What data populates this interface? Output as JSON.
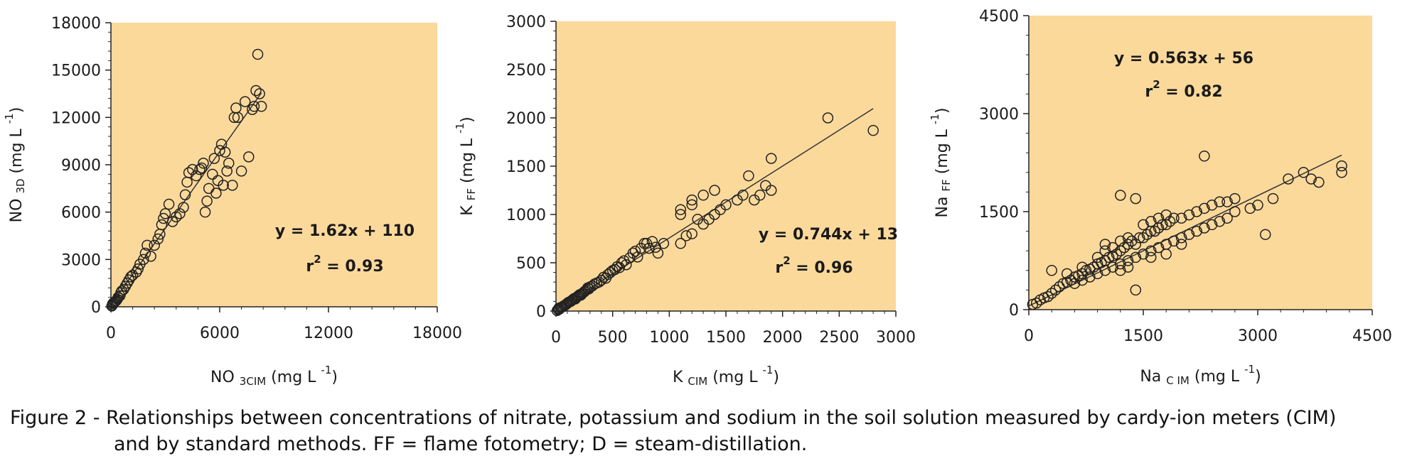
{
  "panels": [
    {
      "type": "scatter",
      "ylabel": {
        "base": "NO",
        "sub": "3D",
        "unit": "(mg L",
        "exp": "-1",
        "close": ")"
      },
      "xlabel": {
        "base": "NO",
        "sub": "3CIM",
        "unit": "(mg L",
        "exp": "-1",
        "close": ")"
      },
      "equation": "y = 1.62x + 110",
      "r2_value": "= 0.93",
      "r2_label": "r",
      "r2_exp": "2",
      "xlim": [
        0,
        18000
      ],
      "ylim": [
        0,
        18000
      ],
      "xticks": [
        0,
        6000,
        12000,
        18000
      ],
      "yticks": [
        0,
        3000,
        6000,
        9000,
        12000,
        15000,
        18000
      ],
      "xtick_labels": [
        "0",
        "6000",
        "12000",
        "18000"
      ],
      "ytick_labels": [
        "0",
        "3000",
        "6000",
        "9000",
        "12000",
        "15000",
        "18000"
      ],
      "fit": {
        "slope": 1.62,
        "intercept": 110,
        "x_range": [
          0,
          8300
        ]
      },
      "points": [
        [
          50,
          50
        ],
        [
          80,
          120
        ],
        [
          100,
          200
        ],
        [
          150,
          250
        ],
        [
          200,
          300
        ],
        [
          250,
          350
        ],
        [
          300,
          400
        ],
        [
          350,
          480
        ],
        [
          400,
          600
        ],
        [
          500,
          700
        ],
        [
          550,
          900
        ],
        [
          600,
          1000
        ],
        [
          700,
          1100
        ],
        [
          800,
          1300
        ],
        [
          900,
          1500
        ],
        [
          1000,
          1700
        ],
        [
          1100,
          1900
        ],
        [
          1200,
          2000
        ],
        [
          1400,
          2200
        ],
        [
          1500,
          2400
        ],
        [
          1600,
          2700
        ],
        [
          1800,
          3000
        ],
        [
          1900,
          3400
        ],
        [
          2000,
          3900
        ],
        [
          2200,
          3200
        ],
        [
          2400,
          3900
        ],
        [
          2600,
          4300
        ],
        [
          2700,
          4600
        ],
        [
          2800,
          5200
        ],
        [
          2900,
          5600
        ],
        [
          3000,
          5900
        ],
        [
          3200,
          6500
        ],
        [
          3400,
          5400
        ],
        [
          3600,
          5700
        ],
        [
          3800,
          5900
        ],
        [
          4000,
          6300
        ],
        [
          4100,
          7100
        ],
        [
          4200,
          7900
        ],
        [
          4300,
          8500
        ],
        [
          4500,
          8700
        ],
        [
          4700,
          8300
        ],
        [
          4900,
          8700
        ],
        [
          5000,
          8800
        ],
        [
          5100,
          9100
        ],
        [
          5200,
          6000
        ],
        [
          5300,
          6700
        ],
        [
          5400,
          7500
        ],
        [
          5600,
          8400
        ],
        [
          5700,
          9400
        ],
        [
          5800,
          7200
        ],
        [
          5900,
          8000
        ],
        [
          6000,
          9900
        ],
        [
          6100,
          10300
        ],
        [
          6200,
          7700
        ],
        [
          6300,
          9800
        ],
        [
          6400,
          8600
        ],
        [
          6500,
          9100
        ],
        [
          6700,
          7700
        ],
        [
          6800,
          12000
        ],
        [
          6900,
          12600
        ],
        [
          7000,
          12000
        ],
        [
          7200,
          8600
        ],
        [
          7400,
          13000
        ],
        [
          7600,
          9500
        ],
        [
          7800,
          12500
        ],
        [
          7900,
          12700
        ],
        [
          8000,
          13700
        ],
        [
          8100,
          16000
        ],
        [
          8200,
          13500
        ],
        [
          8300,
          12700
        ]
      ]
    },
    {
      "type": "scatter",
      "ylabel": {
        "base": "K",
        "sub": "FF",
        "unit": "(mg L",
        "exp": "-1",
        "close": ")"
      },
      "xlabel": {
        "base": "K",
        "sub": "CIM",
        "unit": "(mg L",
        "exp": "-1",
        "close": ")"
      },
      "equation": "y = 0.744x + 13",
      "r2_value": "= 0.96",
      "r2_label": "r",
      "r2_exp": "2",
      "xlim": [
        0,
        3000
      ],
      "ylim": [
        0,
        3000
      ],
      "xticks": [
        0,
        500,
        1000,
        1500,
        2000,
        2500,
        3000
      ],
      "yticks": [
        0,
        500,
        1000,
        1500,
        2000,
        2500,
        3000
      ],
      "xtick_labels": [
        "0",
        "500",
        "1000",
        "1500",
        "2000",
        "2500",
        "3000"
      ],
      "ytick_labels": [
        "0",
        "500",
        "1000",
        "1500",
        "2000",
        "2500",
        "3000"
      ],
      "fit": {
        "slope": 0.744,
        "intercept": 13,
        "x_range": [
          0,
          2800
        ]
      },
      "points": [
        [
          10,
          5
        ],
        [
          20,
          15
        ],
        [
          25,
          30
        ],
        [
          30,
          20
        ],
        [
          40,
          35
        ],
        [
          50,
          40
        ],
        [
          60,
          45
        ],
        [
          70,
          55
        ],
        [
          80,
          60
        ],
        [
          90,
          70
        ],
        [
          100,
          80
        ],
        [
          110,
          90
        ],
        [
          120,
          95
        ],
        [
          130,
          100
        ],
        [
          140,
          110
        ],
        [
          150,
          120
        ],
        [
          160,
          130
        ],
        [
          170,
          125
        ],
        [
          180,
          140
        ],
        [
          190,
          150
        ],
        [
          200,
          160
        ],
        [
          210,
          170
        ],
        [
          220,
          165
        ],
        [
          230,
          180
        ],
        [
          240,
          190
        ],
        [
          250,
          200
        ],
        [
          260,
          210
        ],
        [
          270,
          220
        ],
        [
          280,
          240
        ],
        [
          290,
          230
        ],
        [
          300,
          250
        ],
        [
          320,
          260
        ],
        [
          340,
          280
        ],
        [
          360,
          290
        ],
        [
          380,
          300
        ],
        [
          400,
          320
        ],
        [
          420,
          350
        ],
        [
          440,
          340
        ],
        [
          460,
          380
        ],
        [
          480,
          400
        ],
        [
          500,
          420
        ],
        [
          520,
          430
        ],
        [
          540,
          460
        ],
        [
          560,
          450
        ],
        [
          580,
          500
        ],
        [
          600,
          520
        ],
        [
          620,
          480
        ],
        [
          650,
          550
        ],
        [
          680,
          600
        ],
        [
          700,
          620
        ],
        [
          720,
          560
        ],
        [
          750,
          650
        ],
        [
          780,
          700
        ],
        [
          800,
          700
        ],
        [
          820,
          650
        ],
        [
          850,
          720
        ],
        [
          880,
          660
        ],
        [
          900,
          600
        ],
        [
          950,
          700
        ],
        [
          1100,
          700
        ],
        [
          1100,
          1000
        ],
        [
          1100,
          1050
        ],
        [
          1150,
          780
        ],
        [
          1200,
          800
        ],
        [
          1200,
          1100
        ],
        [
          1200,
          1150
        ],
        [
          1250,
          950
        ],
        [
          1300,
          900
        ],
        [
          1300,
          1200
        ],
        [
          1350,
          950
        ],
        [
          1400,
          1000
        ],
        [
          1400,
          1250
        ],
        [
          1450,
          1050
        ],
        [
          1500,
          1100
        ],
        [
          1600,
          1150
        ],
        [
          1650,
          1200
        ],
        [
          1700,
          1400
        ],
        [
          1750,
          1150
        ],
        [
          1800,
          1200
        ],
        [
          1850,
          1300
        ],
        [
          1900,
          1250
        ],
        [
          1900,
          1580
        ],
        [
          2400,
          2000
        ],
        [
          2800,
          1870
        ]
      ]
    },
    {
      "type": "scatter",
      "ylabel": {
        "base": "Na",
        "sub": "FF",
        "unit": "(mg L",
        "exp": "-1",
        "close": ")"
      },
      "xlabel": {
        "base": "Na",
        "sub": "C IM",
        "unit": "(mg L",
        "exp": "-1",
        "close": ")"
      },
      "equation": "y = 0.563x + 56",
      "r2_value": "= 0.82",
      "r2_label": "r",
      "r2_exp": "2",
      "xlim": [
        0,
        4500
      ],
      "ylim": [
        0,
        4500
      ],
      "xticks": [
        0,
        1500,
        3000,
        4500
      ],
      "yticks": [
        0,
        1500,
        3000,
        4500
      ],
      "xtick_labels": [
        "0",
        "1500",
        "3000",
        "4500"
      ],
      "ytick_labels": [
        "0",
        "1500",
        "3000",
        "4500"
      ],
      "fit": {
        "slope": 0.563,
        "intercept": 56,
        "x_range": [
          0,
          4100
        ]
      },
      "points": [
        [
          50,
          80
        ],
        [
          100,
          100
        ],
        [
          150,
          150
        ],
        [
          200,
          180
        ],
        [
          250,
          200
        ],
        [
          300,
          250
        ],
        [
          350,
          300
        ],
        [
          400,
          350
        ],
        [
          450,
          400
        ],
        [
          500,
          420
        ],
        [
          550,
          450
        ],
        [
          600,
          500
        ],
        [
          650,
          520
        ],
        [
          700,
          550
        ],
        [
          750,
          600
        ],
        [
          800,
          620
        ],
        [
          850,
          650
        ],
        [
          900,
          700
        ],
        [
          950,
          720
        ],
        [
          1000,
          750
        ],
        [
          1050,
          800
        ],
        [
          1100,
          820
        ],
        [
          1150,
          850
        ],
        [
          1200,
          900
        ],
        [
          1250,
          950
        ],
        [
          1300,
          1000
        ],
        [
          1350,
          1050
        ],
        [
          1400,
          1000
        ],
        [
          1450,
          1100
        ],
        [
          1500,
          1100
        ],
        [
          1550,
          1150
        ],
        [
          1600,
          1200
        ],
        [
          1650,
          1200
        ],
        [
          1700,
          1250
        ],
        [
          1750,
          1300
        ],
        [
          1800,
          1300
        ],
        [
          1850,
          1350
        ],
        [
          1900,
          1400
        ],
        [
          2000,
          1400
        ],
        [
          2100,
          1450
        ],
        [
          2200,
          1500
        ],
        [
          2300,
          1550
        ],
        [
          2400,
          1600
        ],
        [
          2500,
          1650
        ],
        [
          2600,
          1650
        ],
        [
          2700,
          1700
        ],
        [
          2900,
          1550
        ],
        [
          3000,
          1600
        ],
        [
          3100,
          1150
        ],
        [
          3200,
          1700
        ],
        [
          3400,
          2000
        ],
        [
          3600,
          2100
        ],
        [
          3700,
          2000
        ],
        [
          3800,
          1950
        ],
        [
          4100,
          2100
        ],
        [
          4100,
          2200
        ],
        [
          1200,
          1750
        ],
        [
          1400,
          1700
        ],
        [
          1400,
          300
        ],
        [
          2300,
          2350
        ],
        [
          600,
          400
        ],
        [
          700,
          450
        ],
        [
          800,
          500
        ],
        [
          900,
          550
        ],
        [
          1000,
          600
        ],
        [
          1100,
          650
        ],
        [
          1200,
          700
        ],
        [
          1300,
          750
        ],
        [
          1400,
          800
        ],
        [
          1500,
          850
        ],
        [
          1600,
          900
        ],
        [
          1700,
          950
        ],
        [
          1800,
          1000
        ],
        [
          1900,
          1050
        ],
        [
          2000,
          1100
        ],
        [
          2100,
          1150
        ],
        [
          2200,
          1200
        ],
        [
          2300,
          1250
        ],
        [
          2400,
          1300
        ],
        [
          2500,
          1350
        ],
        [
          1000,
          900
        ],
        [
          1100,
          950
        ],
        [
          1200,
          1050
        ],
        [
          1300,
          1100
        ],
        [
          1500,
          1300
        ],
        [
          1600,
          1350
        ],
        [
          1700,
          1400
        ],
        [
          1800,
          1450
        ],
        [
          2600,
          1400
        ],
        [
          2700,
          1500
        ],
        [
          300,
          600
        ],
        [
          500,
          550
        ],
        [
          700,
          650
        ],
        [
          900,
          800
        ],
        [
          1000,
          1000
        ],
        [
          1200,
          600
        ],
        [
          1300,
          650
        ],
        [
          1600,
          800
        ],
        [
          1800,
          850
        ],
        [
          2000,
          1000
        ]
      ]
    }
  ],
  "chart_data": [
    {
      "type": "scatter",
      "title": "",
      "xlabel": "NO 3CIM (mg L -1)",
      "ylabel": "NO 3D (mg L -1)",
      "xlim": [
        0,
        18000
      ],
      "ylim": [
        0,
        18000
      ],
      "annotations": [
        "y = 1.62x + 110",
        "r2 = 0.93"
      ],
      "grid": false
    },
    {
      "type": "scatter",
      "title": "",
      "xlabel": "K CIM (mg L -1)",
      "ylabel": "K FF (mg L -1)",
      "xlim": [
        0,
        3000
      ],
      "ylim": [
        0,
        3000
      ],
      "annotations": [
        "y = 0.744x + 13",
        "r2 = 0.96"
      ],
      "grid": false
    },
    {
      "type": "scatter",
      "title": "",
      "xlabel": "Na C IM (mg L -1)",
      "ylabel": "Na FF (mg L -1)",
      "xlim": [
        0,
        4500
      ],
      "ylim": [
        0,
        4500
      ],
      "annotations": [
        "y = 0.563x + 56",
        "r2 = 0.82"
      ],
      "grid": false
    }
  ],
  "colors": {
    "plot_bg": "#fbd99b",
    "marker": "#222222",
    "fit_line": "#333333",
    "axis": "#222222"
  },
  "caption": {
    "line1": "Figure 2 - Relationships between concentrations of nitrate, potassium and sodium in the soil solution measured by cardy-ion meters (CIM)",
    "line2": "and by standard methods. FF = flame fotometry; D = steam-distillation."
  }
}
